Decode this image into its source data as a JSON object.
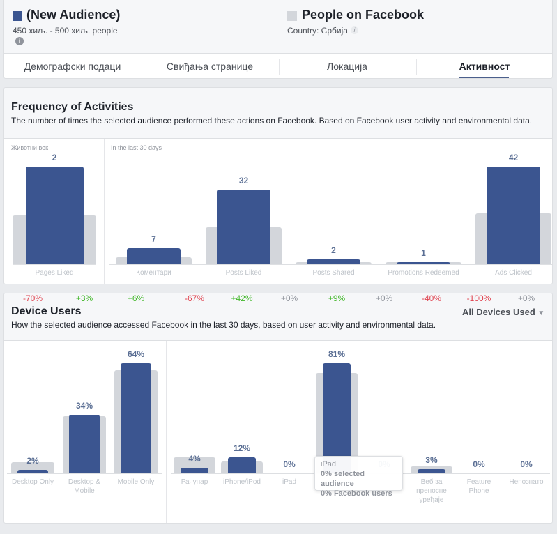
{
  "header": {
    "audience": {
      "title": "(New Audience)",
      "size": "450 хиљ. - 500 хиљ. people",
      "color": "#3b5590",
      "icon": "info-icon"
    },
    "comparison": {
      "title": "People on Facebook",
      "country": "Country: Србија",
      "color": "#d3d6db",
      "icon": "info-icon"
    }
  },
  "tabs": [
    {
      "label": "Демографски подаци",
      "active": false
    },
    {
      "label": "Свиђања странице",
      "active": false
    },
    {
      "label": "Локација",
      "active": false
    },
    {
      "label": "Активност",
      "active": true
    }
  ],
  "frequency": {
    "title": "Frequency of Activities",
    "description": "The number of times the selected audience performed these actions on Facebook. Based on Facebook user activity and environmental data.",
    "lifetime_label": "Животни век",
    "last30_label": "In the last 30 days"
  },
  "devices": {
    "title": "Device Users",
    "description": "How the selected audience accessed Facebook in the last 30 days, based on user activity and environmental data.",
    "dropdown": "All Devices Used",
    "tooltip": {
      "title": "iPad",
      "line1": "0% selected audience",
      "line2": "0% Facebook users"
    }
  },
  "chart_data": [
    {
      "type": "bar",
      "panel": "lifetime",
      "categories": [
        "Pages Liked"
      ],
      "series": [
        {
          "values": [
            2
          ]
        },
        {
          "values": [
            1
          ]
        }
      ],
      "value_labels": [
        "2"
      ]
    },
    {
      "type": "bar",
      "panel": "last_30_days",
      "categories": [
        "Коментари",
        "Posts Liked",
        "Posts Shared",
        "Promotions Redeemed",
        "Ads Clicked"
      ],
      "series": [
        {
          "values": [
            7,
            32,
            2,
            1,
            42
          ]
        },
        {
          "values": [
            3,
            16,
            1,
            1,
            22
          ]
        }
      ],
      "value_labels": [
        "7",
        "32",
        "2",
        "1",
        "42"
      ]
    },
    {
      "type": "bar",
      "panel": "device_type",
      "categories": [
        "Desktop Only",
        "Desktop & Mobile",
        "Mobile Only"
      ],
      "series": [
        {
          "values": [
            2,
            34,
            64
          ]
        },
        {
          "values": [
            6.6,
            33,
            60
          ]
        }
      ],
      "value_labels": [
        "2%",
        "34%",
        "64%"
      ],
      "diffs": [
        "-70%",
        "+3%",
        "+6%"
      ]
    },
    {
      "type": "bar",
      "panel": "device",
      "categories": [
        "Рачунар",
        "iPhone/iPod",
        "iPad",
        "",
        "",
        "Веб за преносне уређаје",
        "Feature Phone",
        "Непознато"
      ],
      "series": [
        {
          "values": [
            4,
            12,
            0,
            81,
            0,
            3,
            0,
            0
          ]
        },
        {
          "values": [
            12,
            8.5,
            0,
            74,
            0,
            5,
            0.5,
            0
          ]
        }
      ],
      "value_labels": [
        "4%",
        "12%",
        "0%",
        "81%",
        "0%",
        "3%",
        "0%",
        "0%"
      ],
      "diffs": [
        "-67%",
        "+42%",
        "+0%",
        "+9%",
        "+0%",
        "-40%",
        "-100%",
        "+0%"
      ]
    }
  ],
  "colors": {
    "selected": "#3b5590",
    "facebook": "#d3d6db",
    "negative": "#e0434f",
    "positive": "#42b72a"
  }
}
